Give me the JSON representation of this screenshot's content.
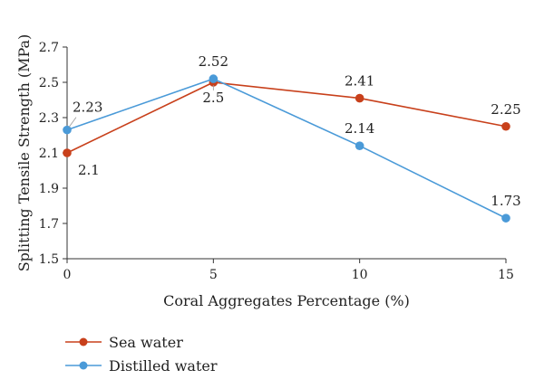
{
  "chart_data": {
    "type": "line",
    "x": [
      0,
      5,
      10,
      15
    ],
    "xlabel": "Coral Aggregates Percentage (%)",
    "ylabel": "Splitting Tensile Strength (MPa)",
    "xlim": [
      0,
      15
    ],
    "ylim": [
      1.5,
      2.7
    ],
    "x_ticks": [
      "0",
      "5",
      "10",
      "15"
    ],
    "y_ticks": [
      "1.5",
      "1.7",
      "1.9",
      "2.1",
      "2.3",
      "2.5",
      "2.7"
    ],
    "grid": false,
    "legend_position": "bottom-left",
    "series": [
      {
        "name": "Sea water",
        "color": "#c8401b",
        "values": [
          2.1,
          2.5,
          2.41,
          2.25
        ],
        "labels": [
          "2.1",
          "2.5",
          "2.41",
          "2.25"
        ]
      },
      {
        "name": "Distilled water",
        "color": "#4a9ad8",
        "values": [
          2.23,
          2.52,
          2.14,
          1.73
        ],
        "labels": [
          "2.23",
          "2.52",
          "2.14",
          "1.73"
        ]
      }
    ]
  }
}
